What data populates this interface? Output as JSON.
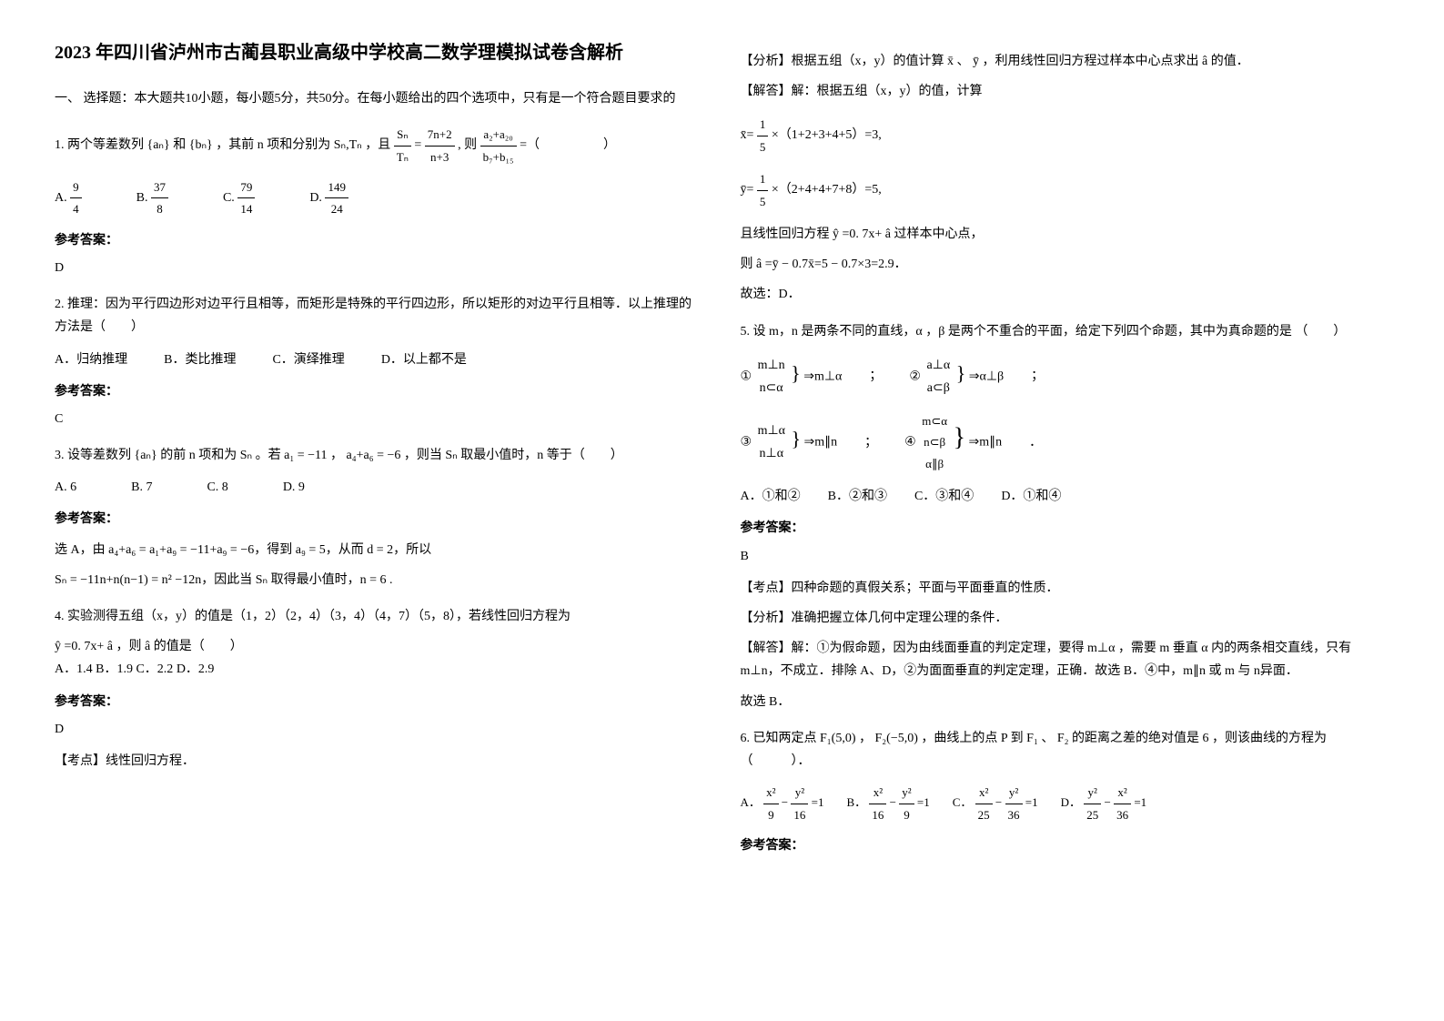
{
  "title": "2023 年四川省泸州市古蔺县职业高级中学校高二数学理模拟试卷含解析",
  "section1": {
    "header": "一、 选择题：本大题共10小题，每小题5分，共50分。在每小题给出的四个选项中，只有是一个符合题目要求的"
  },
  "q1": {
    "text_pre": "1. 两个等差数列",
    "text_mid1": "和",
    "text_mid2": "，其前",
    "text_mid3": "项和分别为",
    "text_mid4": "，且",
    "text_mid5": "则",
    "text_end": "=（　　　　　）",
    "seq_an": "{aₙ}",
    "seq_bn": "{bₙ}",
    "var_n": "n",
    "sn_tn": "Sₙ,Tₙ",
    "frac_sn_tn": "Sₙ",
    "frac_sn_tn_den": "Tₙ",
    "frac_rhs_num": "7n+2",
    "frac_rhs_den": "n+3",
    "target_num": "a₂+a₂₀",
    "target_den": "b₇+b₁₅",
    "optA_label": "A.",
    "optA_num": "9",
    "optA_den": "4",
    "optB_label": "B.",
    "optB_num": "37",
    "optB_den": "8",
    "optC_label": "C.",
    "optC_num": "79",
    "optC_den": "14",
    "optD_label": "D.",
    "optD_num": "149",
    "optD_den": "24",
    "answer_label": "参考答案：",
    "answer": "D"
  },
  "q2": {
    "text": "2. 推理：因为平行四边形对边平行且相等，而矩形是特殊的平行四边形，所以矩形的对边平行且相等．以上推理的方法是（　　）",
    "optA": "A．归纳推理",
    "optB": "B．类比推理",
    "optC": "C．演绎推理",
    "optD": "D．以上都不是",
    "answer_label": "参考答案：",
    "answer": "C"
  },
  "q3": {
    "text_pre": "3. 设等差数列",
    "seq": "{aₙ}",
    "text_mid1": "的前 n 项和为",
    "sn": "Sₙ",
    "text_mid2": "。若",
    "cond1": "a₁ = −11",
    "text_mid3": "，",
    "cond2": "a₄+a₆ = −6",
    "text_mid4": "，则当",
    "sn2": "Sₙ",
    "text_end": "取最小值时，n 等于（　　）",
    "optA": "A. 6",
    "optB": "B. 7",
    "optC": "C. 8",
    "optD": "D. 9",
    "answer_label": "参考答案：",
    "answer_line1": "选 A，由 a₄+a₆ = a₁+a₉ = −11+a₉ = −6，得到 a₉ = 5，从而 d = 2，所以",
    "answer_line2": "Sₙ = −11n+n(n−1) = n² −12n，因此当 Sₙ 取得最小值时，n = 6 ."
  },
  "q4": {
    "text": "4. 实验测得五组（x，y）的值是（1，2）（2，4）（3，4）（4，7）（5，8），若线性回归方程为",
    "eq_pre": "ŷ",
    "eq_mid": "=0. 7x+",
    "eq_a": "â",
    "eq_mid2": "，则",
    "eq_a2": "â",
    "eq_end": "的值是（　　）",
    "optA": "A．1.4",
    "optB": "B．1.9",
    "optC": "C．2.2",
    "optD": "D．2.9",
    "answer_label": "参考答案：",
    "answer": "D",
    "kaodian_label": "【考点】线性回归方程．",
    "analysis_label": "【分析】根据五组（x，y）的值计算",
    "xbar": "x̄",
    "comma": "、",
    "ybar": "ȳ",
    "analysis_mid": "，利用线性回归方程过样本中心点求出",
    "ahat": "â",
    "analysis_end": "的值．",
    "solve_label": "【解答】解：根据五组（x，y）的值，计算",
    "xbar_eq_pre": "x̄=",
    "xbar_frac_num": "1",
    "xbar_frac_den": "5",
    "xbar_eq_post": "×（1+2+3+4+5）=3,",
    "ybar_eq_pre": "ȳ=",
    "ybar_frac_num": "1",
    "ybar_frac_den": "5",
    "ybar_eq_post": "×（2+4+4+7+8）=5,",
    "line3_pre": "且线性回归方程",
    "line3_y": "ŷ",
    "line3_mid": "=0. 7x+",
    "line3_a": "â",
    "line3_end": "过样本中心点，",
    "line4_pre": "则",
    "line4_a": "â",
    "line4_eq": "=ȳ − 0.7x̄=5 − 0.7×3=2.9．",
    "conclusion": "故选：D．"
  },
  "q5": {
    "text": "5. 设 m，n 是两条不同的直线，α ，β 是两个不重合的平面，给定下列四个命题，其中为真命题的是 （　　）",
    "prop1_cond1": "m⊥n",
    "prop1_cond2": "n⊂α",
    "prop1_res": "⇒m⊥α",
    "prop2_cond1": "a⊥α",
    "prop2_cond2": "a⊂β",
    "prop2_res": "⇒α⊥β",
    "prop3_cond1": "m⊥α",
    "prop3_cond2": "n⊥α",
    "prop3_res": "⇒m∥n",
    "prop4_cond1": "m⊂α",
    "prop4_cond2": "n⊂β",
    "prop4_cond3": "α∥β",
    "prop4_res": "⇒m∥n",
    "label1": "①",
    "label2": "②",
    "label3": "③",
    "label4": "④",
    "semicolon": "；",
    "period": "．",
    "optA": "A．①和②",
    "optB": "B．②和③",
    "optC": "C．③和④",
    "optD": "D．①和④",
    "answer_label": "参考答案：",
    "answer": "B",
    "kaodian": "【考点】四种命题的真假关系；平面与平面垂直的性质．",
    "fenxi": "【分析】准确把握立体几何中定理公理的条件．",
    "solve": "【解答】解：①为假命题，因为由线面垂直的判定定理，要得 m⊥α ，需要 m 垂直 α 内的两条相交直线，只有 m⊥n，不成立．排除 A、D，②为面面垂直的判定定理，正确．故选 B．④中，m∥n 或 m 与 n异面．",
    "conclusion": "故选 B．"
  },
  "q6": {
    "text_pre": "6. 已知两定点",
    "f1": "F₁(5,0)",
    "text_mid1": "，",
    "f2": "F₂(−5,0)",
    "text_mid2": "，曲线上的点",
    "p": "P",
    "text_mid3": "到",
    "f1_2": "F₁",
    "text_mid4": "、",
    "f2_2": "F₂",
    "text_mid5": "的距离之差的绝对值是",
    "six": "6",
    "text_end": "，则该曲线的方程为（　　　）．",
    "optA_label": "A．",
    "optA_eq": "x²/9 − y²/16 =1",
    "optB_label": "B．",
    "optB_eq": "x²/16 − y²/9 =1",
    "optC_label": "C．",
    "optC_eq": "x²/25 − y²/36 =1",
    "optD_label": "D．",
    "optD_eq": "y²/25 − x²/36 =1",
    "answer_label": "参考答案："
  }
}
